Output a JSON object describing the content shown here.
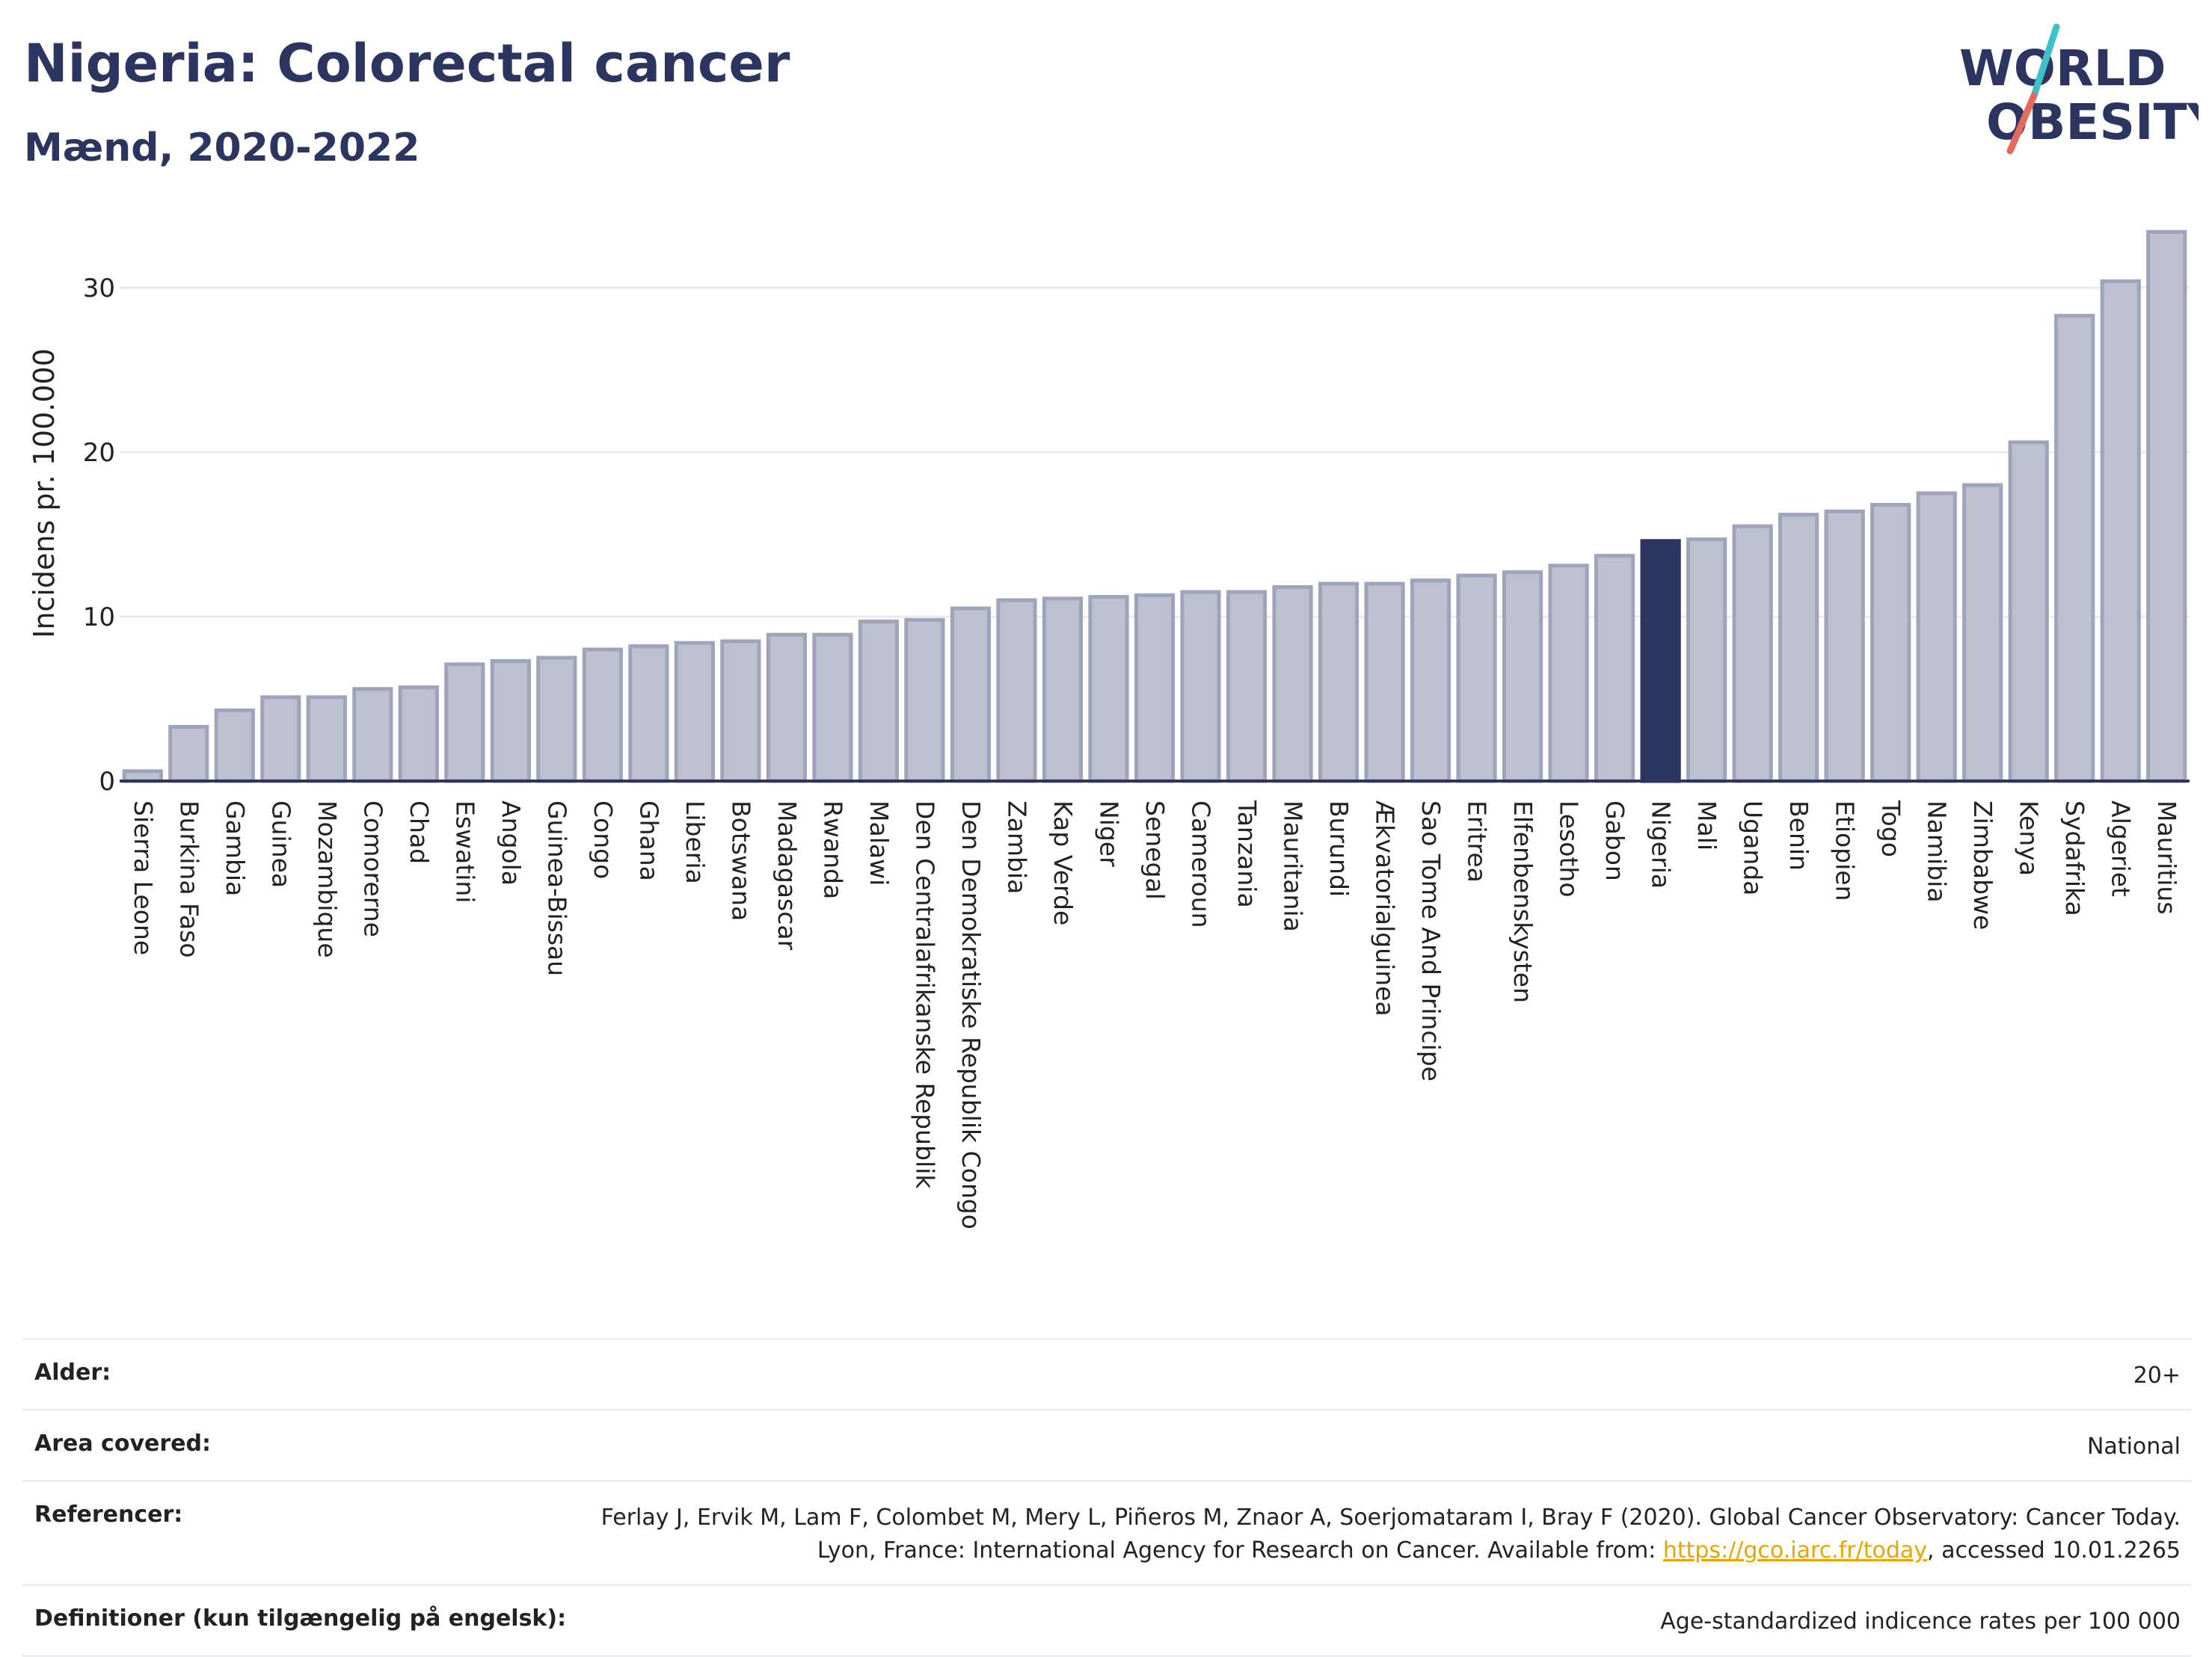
{
  "header": {
    "title": "Nigeria: Colorectal cancer",
    "subtitle": "Mænd, 2020-2022"
  },
  "logo": {
    "line1": "WORLD",
    "line2": "OBESITY"
  },
  "colors": {
    "bar_default": "#bcc0cf",
    "bar_border": "#9ea4ba",
    "bar_highlight": "#2b3560",
    "gridline": "#e9ebf0",
    "logo_slash_teal": "#3ec1c6",
    "logo_slash_coral": "#e46a5e"
  },
  "chart_data": {
    "type": "bar",
    "ylabel": "Incidens pr. 100.000",
    "ylim": [
      0,
      35
    ],
    "yticks": [
      0,
      10,
      20,
      30
    ],
    "grid": true,
    "highlight": "Nigeria",
    "categories": [
      "Sierra Leone",
      "Burkina Faso",
      "Gambia",
      "Guinea",
      "Mozambique",
      "Comorerne",
      "Chad",
      "Eswatini",
      "Angola",
      "Guinea-Bissau",
      "Congo",
      "Ghana",
      "Liberia",
      "Botswana",
      "Madagascar",
      "Rwanda",
      "Malawi",
      "Den Centralafrikanske Republik",
      "Den Demokratiske Republik Congo",
      "Zambia",
      "Kap Verde",
      "Niger",
      "Senegal",
      "Cameroun",
      "Tanzania",
      "Mauritania",
      "Burundi",
      "Ækvatorialguinea",
      "Sao Tome And Principe",
      "Eritrea",
      "Elfenbenskysten",
      "Lesotho",
      "Gabon",
      "Nigeria",
      "Mali",
      "Uganda",
      "Benin",
      "Etiopien",
      "Togo",
      "Namibia",
      "Zimbabwe",
      "Kenya",
      "Sydafrika",
      "Algeriet",
      "Mauritius"
    ],
    "values": [
      0.6,
      3.3,
      4.3,
      5.1,
      5.1,
      5.6,
      5.7,
      7.1,
      7.3,
      7.5,
      8.0,
      8.2,
      8.4,
      8.5,
      8.9,
      8.9,
      9.7,
      9.8,
      10.5,
      11.0,
      11.1,
      11.2,
      11.3,
      11.5,
      11.5,
      11.8,
      12.0,
      12.0,
      12.2,
      12.5,
      12.7,
      13.1,
      13.7,
      14.6,
      14.7,
      15.5,
      16.2,
      16.4,
      16.8,
      17.5,
      18.0,
      20.6,
      28.3,
      30.4,
      33.4
    ]
  },
  "info": {
    "rows": [
      {
        "key": "Alder:",
        "value": "20+"
      },
      {
        "key": "Area covered:",
        "value": "National"
      },
      {
        "key": "Referencer:",
        "value": "Ferlay J, Ervik M, Lam F, Colombet M, Mery L, Piñeros M, Znaor A, Soerjomataram I, Bray F (2020). Global Cancer Observatory: Cancer Today. Lyon, France: International Agency for Research on Cancer. Available from: ",
        "link": "https://gco.iarc.fr/today",
        "suffix": ", accessed 10.01.2265"
      },
      {
        "key": "Definitioner (kun tilgængelig på engelsk):",
        "value": "Age-standardized indicence rates per 100 000"
      }
    ]
  }
}
